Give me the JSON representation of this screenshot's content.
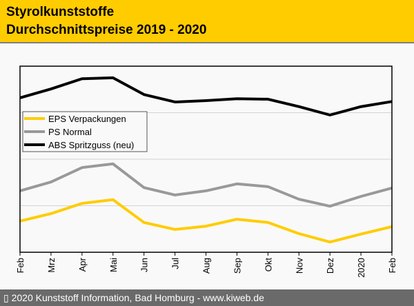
{
  "header": {
    "title_line1": "Styrolkunststoffe",
    "title_line2": "Durchschnittspreise 2019 - 2020"
  },
  "footer": {
    "text": "▯ 2020 Kunststoff Information, Bad Homburg - www.kiweb.de"
  },
  "chart_data": {
    "type": "line",
    "title": "Styrolkunststoffe Durchschnittspreise 2019 - 2020",
    "xlabel": "",
    "ylabel": "",
    "y_units_note": "no y-axis labels shown; values are relative (gridline = 1 unit)",
    "ylim": [
      0,
      4
    ],
    "grid": true,
    "legend_position": "top-left",
    "categories": [
      "Feb",
      "Mrz",
      "Apr",
      "Mai",
      "Jun",
      "Jul",
      "Aug",
      "Sep",
      "Okt",
      "Nov",
      "Dez",
      "2020",
      "Feb"
    ],
    "series": [
      {
        "name": "EPS Verpackungen",
        "color": "#ffcc00",
        "values": [
          0.67,
          0.83,
          1.05,
          1.13,
          0.64,
          0.49,
          0.56,
          0.71,
          0.64,
          0.4,
          0.22,
          0.39,
          0.55
        ]
      },
      {
        "name": "PS Normal",
        "color": "#999999",
        "values": [
          1.32,
          1.51,
          1.82,
          1.9,
          1.39,
          1.23,
          1.32,
          1.47,
          1.41,
          1.14,
          0.99,
          1.2,
          1.38
        ]
      },
      {
        "name": "ABS Spritzguss (neu)",
        "color": "#000000",
        "values": [
          3.32,
          3.51,
          3.73,
          3.75,
          3.39,
          3.23,
          3.26,
          3.3,
          3.29,
          3.13,
          2.95,
          3.13,
          3.24
        ]
      }
    ]
  }
}
